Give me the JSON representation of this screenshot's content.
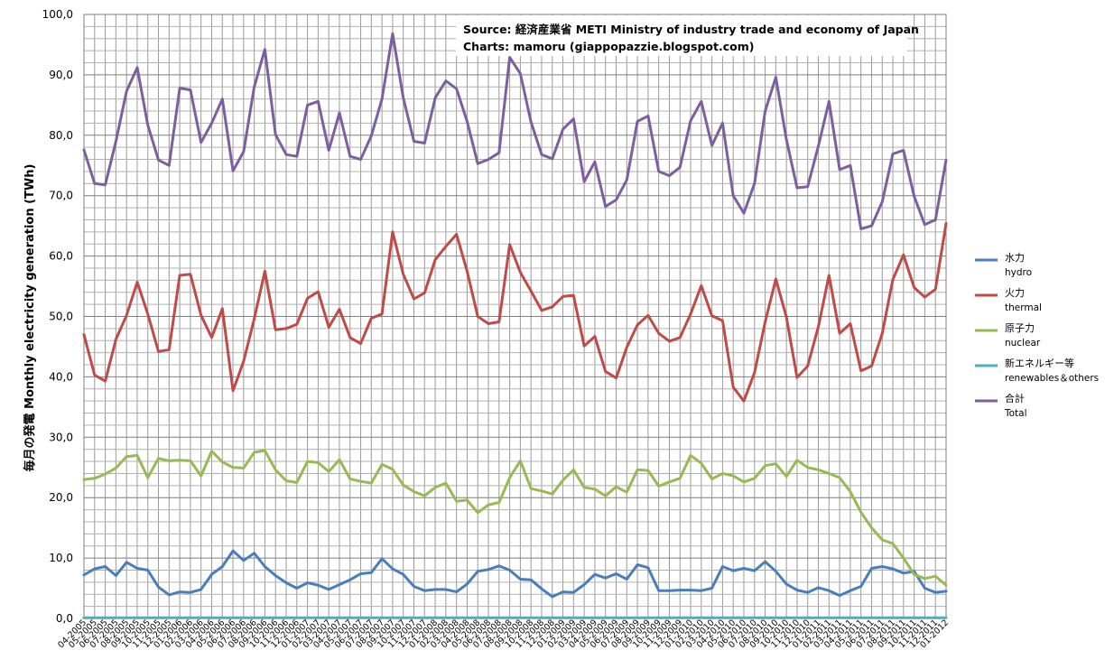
{
  "chart_data": {
    "type": "line",
    "source_line1": "Source:  経済産業省 METI Ministry of industry trade and economy of Japan",
    "source_line2": "Charts:  mamoru  (giappopazzie.blogspot.com)",
    "ylabel": "毎月の発電  Monthly electricity generation  (TWh)",
    "xlabel": "",
    "ylim": [
      0,
      100
    ],
    "yticks": [
      "0,0",
      "10,0",
      "20,0",
      "30,0",
      "40,0",
      "50,0",
      "60,0",
      "70,0",
      "80,0",
      "90,0",
      "100,0"
    ],
    "grid": true,
    "legend_position": "right",
    "x": [
      "04-2005",
      "05-2005",
      "06-2005",
      "07-2005",
      "08-2005",
      "09-2005",
      "10-2005",
      "11-2005",
      "12-2005",
      "01-2006",
      "02-2006",
      "03-2006",
      "04-2006",
      "05-2006",
      "06-2006",
      "07-2006",
      "08-2006",
      "09-2006",
      "10-2006",
      "11-2006",
      "12-2006",
      "01-2007",
      "02-2007",
      "03-2007",
      "04-2007",
      "05-2007",
      "06-2007",
      "07-2007",
      "08-2007",
      "09-2007",
      "10-2007",
      "11-2007",
      "12-2007",
      "01-2008",
      "02-2008",
      "03-2008",
      "04-2008",
      "05-2008",
      "06-2008",
      "07-2008",
      "08-2008",
      "09-2008",
      "10-2008",
      "11-2008",
      "12-2008",
      "01-2009",
      "02-2009",
      "03-2009",
      "04-2009",
      "05-2009",
      "06-2009",
      "07-2009",
      "08-2009",
      "09-2009",
      "10-2009",
      "11-2009",
      "12-2009",
      "01-2010",
      "02-2010",
      "03-2010",
      "04-2010",
      "05-2010",
      "06-2010",
      "07-2010",
      "08-2010",
      "09-2010",
      "10-2010",
      "11-2010",
      "12-2010",
      "01-2011",
      "02-2011",
      "03-2011",
      "04-2011",
      "05-2011",
      "06-2011",
      "07-2011",
      "08-2011",
      "09-2011",
      "10-2011",
      "11-2011",
      "12-2011",
      "01-2012"
    ],
    "series": [
      {
        "name_jp": "水力",
        "name": "hydro",
        "color": "#4a7ebb",
        "values": [
          7.2,
          8.2,
          8.6,
          7.1,
          9.3,
          8.3,
          8.0,
          5.2,
          3.9,
          4.4,
          4.3,
          4.8,
          7.3,
          8.6,
          11.2,
          9.6,
          10.8,
          8.6,
          7.1,
          5.9,
          5.0,
          5.9,
          5.5,
          4.8,
          5.6,
          6.4,
          7.4,
          7.6,
          9.9,
          8.2,
          7.3,
          5.3,
          4.6,
          4.8,
          4.8,
          4.4,
          5.7,
          7.8,
          8.1,
          8.7,
          8.0,
          6.5,
          6.4,
          4.9,
          3.6,
          4.4,
          4.3,
          5.6,
          7.3,
          6.7,
          7.4,
          6.5,
          8.9,
          8.4,
          4.6,
          4.6,
          4.7,
          4.7,
          4.6,
          5.0,
          8.6,
          7.9,
          8.3,
          7.9,
          9.4,
          7.8,
          5.7,
          4.7,
          4.3,
          5.1,
          4.6,
          3.8,
          4.6,
          5.3,
          8.3,
          8.6,
          8.2,
          7.5,
          7.8,
          5.0,
          4.3,
          4.5
        ]
      },
      {
        "name_jp": "火力",
        "name": "thermal",
        "color": "#be4b48",
        "values": [
          47.0,
          40.3,
          39.3,
          46.2,
          50.2,
          55.7,
          50.4,
          44.2,
          44.5,
          56.8,
          57.0,
          50.2,
          46.5,
          51.3,
          37.7,
          42.6,
          49.6,
          57.5,
          47.8,
          48.0,
          48.7,
          53.0,
          54.1,
          48.2,
          51.2,
          46.5,
          45.5,
          49.7,
          50.4,
          64.0,
          57.0,
          52.9,
          53.9,
          59.4,
          61.6,
          63.6,
          57.5,
          50.0,
          48.8,
          49.1,
          61.9,
          57.3,
          54.2,
          51.0,
          51.6,
          53.3,
          53.5,
          45.1,
          46.7,
          40.9,
          39.8,
          44.9,
          48.6,
          50.2,
          47.2,
          45.9,
          46.5,
          50.4,
          55.1,
          50.1,
          49.3,
          38.3,
          36.0,
          40.7,
          49.1,
          56.2,
          49.9,
          39.9,
          41.8,
          48.3,
          56.8,
          47.2,
          48.8,
          41.0,
          41.8,
          47.2,
          56.1,
          60.2,
          54.8,
          53.2,
          54.5,
          65.4
        ]
      },
      {
        "name_jp": "原子力",
        "name": "nuclear",
        "color": "#98b954",
        "values": [
          23.0,
          23.2,
          23.9,
          24.9,
          26.8,
          27.0,
          23.3,
          26.5,
          26.1,
          26.2,
          26.1,
          23.6,
          27.7,
          25.9,
          25.0,
          24.9,
          27.5,
          27.8,
          24.6,
          22.8,
          22.5,
          26.0,
          25.8,
          24.3,
          26.3,
          23.1,
          22.7,
          22.4,
          25.5,
          24.7,
          22.1,
          21.0,
          20.3,
          21.7,
          22.4,
          19.4,
          19.6,
          17.5,
          18.8,
          19.2,
          23.3,
          26.1,
          21.5,
          21.1,
          20.6,
          22.9,
          24.6,
          21.7,
          21.4,
          20.3,
          21.8,
          20.9,
          24.6,
          24.5,
          21.9,
          22.6,
          23.2,
          27.0,
          25.7,
          23.1,
          24.0,
          23.6,
          22.6,
          23.2,
          25.3,
          25.6,
          23.5,
          26.2,
          25.0,
          24.6,
          24.0,
          23.3,
          21.0,
          17.6,
          15.0,
          13.0,
          12.4,
          10.0,
          7.3,
          6.6,
          7.0,
          5.5
        ]
      },
      {
        "name_jp": "新エネルギー等",
        "name": "renewables＆others",
        "color": "#4bacc6",
        "values": [
          0.1,
          0.1,
          0.1,
          0.1,
          0.1,
          0.1,
          0.1,
          0.1,
          0.1,
          0.1,
          0.1,
          0.1,
          0.1,
          0.1,
          0.1,
          0.1,
          0.1,
          0.1,
          0.1,
          0.1,
          0.1,
          0.1,
          0.1,
          0.1,
          0.1,
          0.1,
          0.1,
          0.1,
          0.1,
          0.1,
          0.1,
          0.1,
          0.1,
          0.1,
          0.1,
          0.1,
          0.1,
          0.1,
          0.1,
          0.1,
          0.1,
          0.1,
          0.1,
          0.1,
          0.1,
          0.1,
          0.1,
          0.1,
          0.1,
          0.1,
          0.1,
          0.1,
          0.1,
          0.1,
          0.1,
          0.1,
          0.1,
          0.1,
          0.1,
          0.1,
          0.1,
          0.1,
          0.1,
          0.1,
          0.1,
          0.1,
          0.1,
          0.1,
          0.1,
          0.1,
          0.1,
          0.1,
          0.1,
          0.1,
          0.1,
          0.1,
          0.1,
          0.1,
          0.1,
          0.1,
          0.1,
          0.1
        ]
      },
      {
        "name_jp": "合計",
        "name": "Total",
        "color": "#7d5fa0",
        "values": [
          77.6,
          72.0,
          71.8,
          79.0,
          87.3,
          91.2,
          81.7,
          75.9,
          75.0,
          87.8,
          87.5,
          78.8,
          82.0,
          86.0,
          74.1,
          77.3,
          88.0,
          94.2,
          80.1,
          76.8,
          76.5,
          85.0,
          85.6,
          77.5,
          83.7,
          76.5,
          76.0,
          79.9,
          86.0,
          96.8,
          86.2,
          79.0,
          78.7,
          86.2,
          89.0,
          87.7,
          82.3,
          75.3,
          76.0,
          77.1,
          92.9,
          90.2,
          82.2,
          76.8,
          76.1,
          81.0,
          82.7,
          72.3,
          75.6,
          68.2,
          69.3,
          72.6,
          82.3,
          83.2,
          74.0,
          73.3,
          74.7,
          82.4,
          85.6,
          78.3,
          82.0,
          70.0,
          67.1,
          72.0,
          84.0,
          89.6,
          79.3,
          71.3,
          71.5,
          78.2,
          85.6,
          74.3,
          75.0,
          64.5,
          65.0,
          69.0,
          76.9,
          77.5,
          69.9,
          65.2,
          66.0,
          75.9
        ]
      }
    ]
  }
}
